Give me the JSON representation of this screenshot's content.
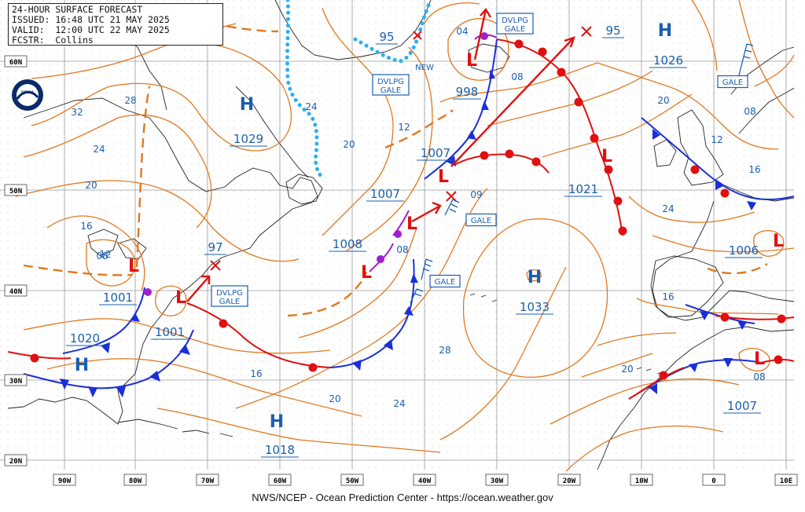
{
  "header": {
    "title": "24-HOUR SURFACE FORECAST",
    "issued": "ISSUED: 16:48 UTC 21 MAY 2025",
    "valid": "VALID:  12:00 UTC 22 MAY 2025",
    "forecaster": "FCSTR:  Collins"
  },
  "footer": "NWS/NCEP - Ocean Prediction Center - https://ocean.weather.gov",
  "logo_text": "NOAA",
  "grid": {
    "lat_labels": [
      "60N",
      "50N",
      "40N",
      "30N",
      "20N"
    ],
    "lon_labels": [
      "90W",
      "80W",
      "70W",
      "60W",
      "50W",
      "40W",
      "30W",
      "20W",
      "10W",
      "0",
      "10E"
    ]
  },
  "highs": [
    {
      "label": "H",
      "pressure": "1029"
    },
    {
      "label": "H",
      "pressure": "1026"
    },
    {
      "label": "H",
      "pressure": "1033"
    },
    {
      "label": "H",
      "pressure": "1020"
    },
    {
      "label": "H",
      "pressure": "1018"
    }
  ],
  "lows": [
    {
      "label": "L",
      "pressure": "998"
    },
    {
      "label": "L",
      "pressure": "1007"
    },
    {
      "label": "L",
      "pressure": "1007"
    },
    {
      "label": "L",
      "pressure": "1008"
    },
    {
      "label": "L",
      "pressure": "1001"
    },
    {
      "label": "L",
      "pressure": "1001"
    },
    {
      "label": "L",
      "pressure": "1021"
    },
    {
      "label": "L",
      "pressure": "1006"
    },
    {
      "label": "L",
      "pressure": "1007"
    }
  ],
  "warnings": [
    "DVLPG GALE",
    "DVLPG GALE",
    "DVLPG GALE",
    "GALE",
    "GALE",
    "GALE"
  ],
  "isobar_labels": [
    "32",
    "28",
    "24",
    "20",
    "16",
    "12",
    "08",
    "24",
    "20",
    "12",
    "04",
    "08",
    "09",
    "08",
    "28",
    "16",
    "20",
    "24",
    "20",
    "16",
    "12",
    "08",
    "24",
    "20",
    "16",
    "08",
    "97",
    "95",
    "95"
  ],
  "new_label": "NEW",
  "colors": {
    "isobar": "#e07820",
    "cold_front": "#1a2fd6",
    "warm_front": "#e01010",
    "occluded_front": "#a020d0",
    "ice_edge": "#2ab0f0",
    "label_blue": "#1a5fb0",
    "coast": "#222222",
    "grid": "#9a9a9a"
  }
}
